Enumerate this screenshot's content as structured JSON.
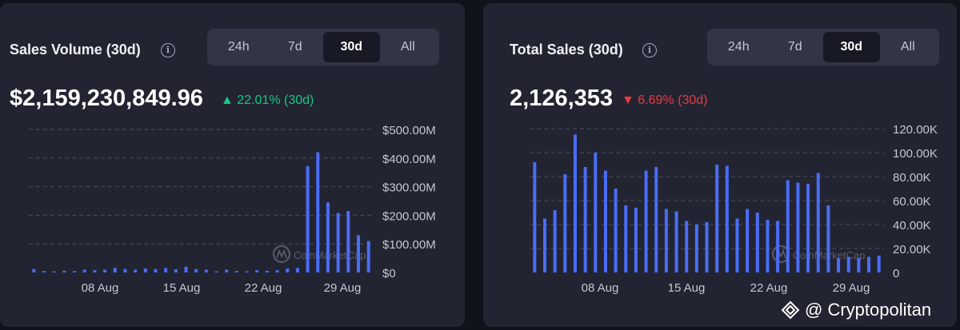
{
  "panels": [
    {
      "title": "Sales Volume (30d)",
      "value": "$2,159,230,849.96",
      "change": "22.01% (30d)",
      "change_direction": "up",
      "tabs": [
        "24h",
        "7d",
        "30d",
        "All"
      ],
      "active_tab": "30d"
    },
    {
      "title": "Total Sales (30d)",
      "value": "2,126,353",
      "change": "6.69% (30d)",
      "change_direction": "down",
      "tabs": [
        "24h",
        "7d",
        "30d",
        "All"
      ],
      "active_tab": "30d"
    }
  ],
  "watermark": "CoinMarketCap",
  "credit": "@ Cryptopolitan",
  "colors": {
    "bar": "#4a6cf7",
    "up": "#16c784",
    "down": "#ea3943",
    "card_bg": "#222531",
    "page_bg": "#10131c"
  },
  "chart_data": [
    {
      "type": "bar",
      "title": "Sales Volume (30d)",
      "x_tick_labels": [
        "08 Aug",
        "15 Aug",
        "22 Aug",
        "29 Aug"
      ],
      "y_tick_labels": [
        "$0",
        "$100.00M",
        "$200.00M",
        "$300.00M",
        "$400.00M",
        "$500.00M"
      ],
      "ylim": [
        0,
        500
      ],
      "y_unit": "$M",
      "grid": true,
      "values": [
        12,
        5,
        4,
        6,
        5,
        10,
        8,
        10,
        16,
        12,
        10,
        14,
        12,
        16,
        11,
        20,
        12,
        10,
        4,
        10,
        5,
        4,
        8,
        6,
        8,
        14,
        16,
        372,
        420,
        245,
        208,
        215,
        130,
        110
      ]
    },
    {
      "type": "bar",
      "title": "Total Sales (30d)",
      "x_tick_labels": [
        "08 Aug",
        "15 Aug",
        "22 Aug",
        "29 Aug"
      ],
      "y_tick_labels": [
        "0",
        "20.00K",
        "40.00K",
        "60.00K",
        "80.00K",
        "100.00K",
        "120.00K"
      ],
      "ylim": [
        0,
        120
      ],
      "y_unit": "K",
      "grid": true,
      "values": [
        92,
        45,
        52,
        82,
        115,
        88,
        100,
        85,
        70,
        56,
        54,
        85,
        88,
        53,
        51,
        43,
        40,
        42,
        90,
        89,
        45,
        53,
        50,
        44,
        43,
        77,
        75,
        74,
        83,
        56,
        12,
        13,
        12,
        13,
        14
      ]
    }
  ]
}
